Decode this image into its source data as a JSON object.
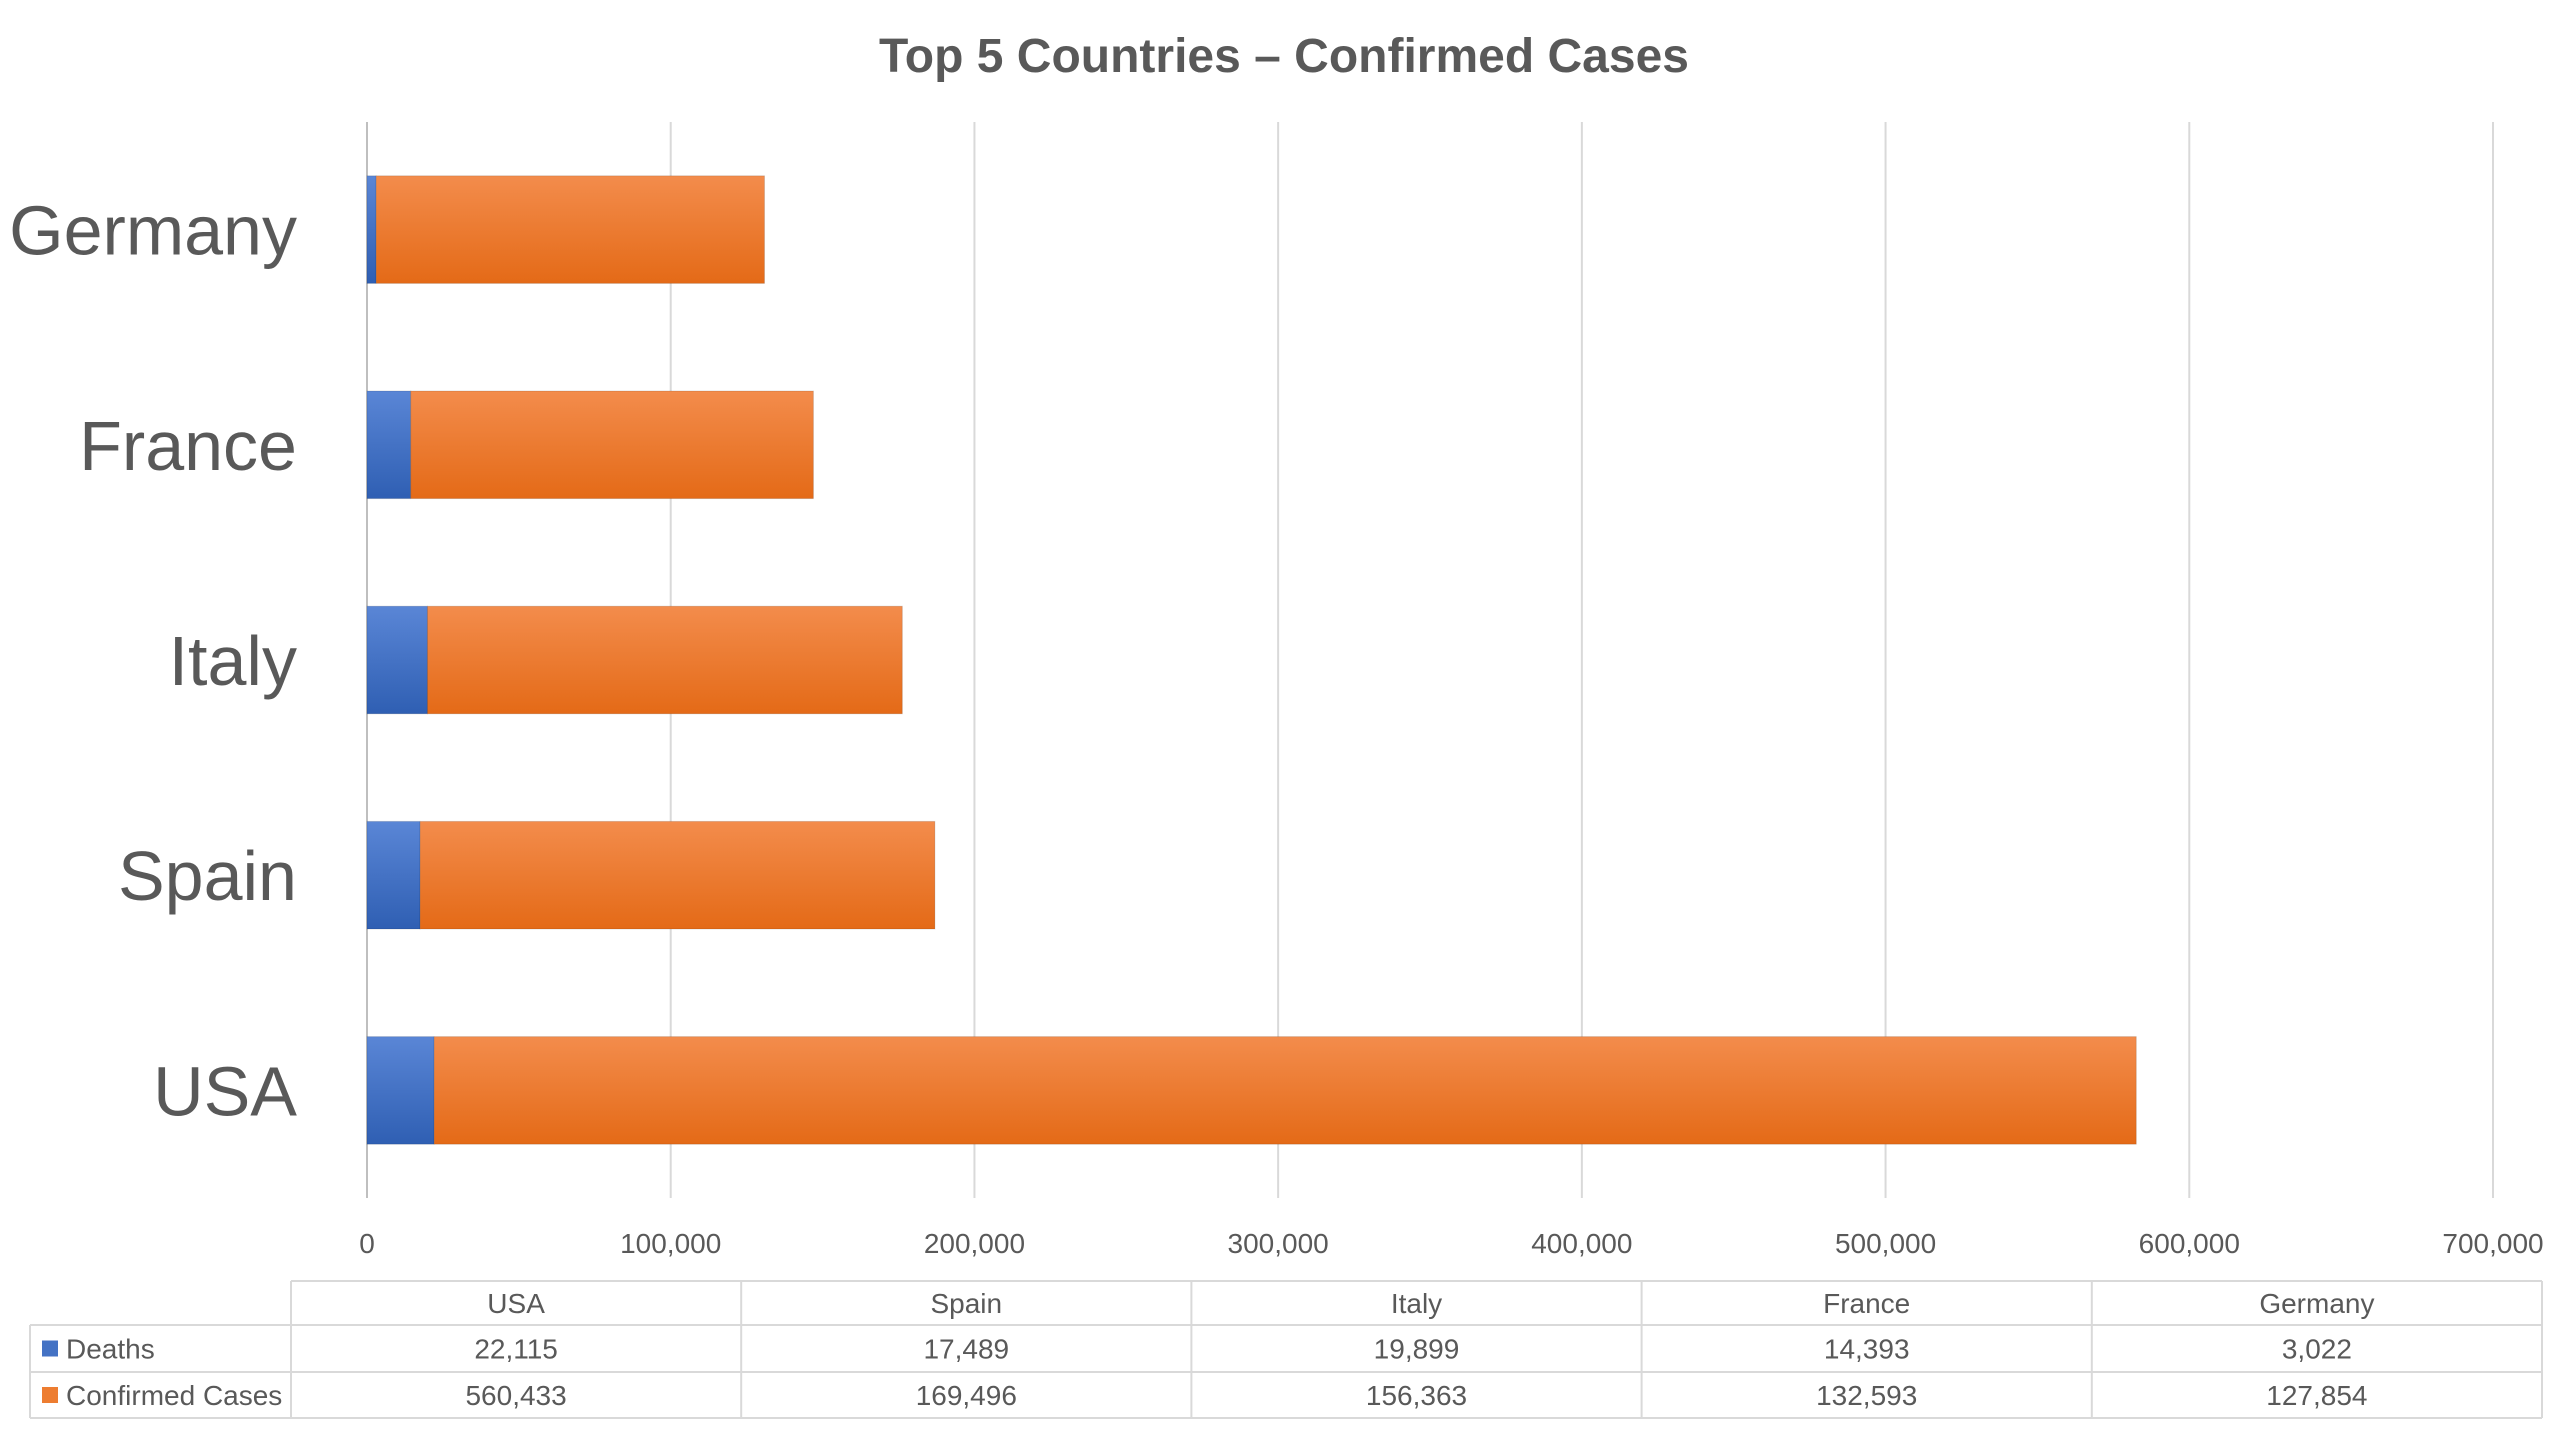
{
  "chart_data": {
    "type": "bar",
    "orientation": "horizontal",
    "stacked": true,
    "title": "Top 5 Countries – Confirmed Cases",
    "categories": [
      "USA",
      "Spain",
      "Italy",
      "France",
      "Germany"
    ],
    "series": [
      {
        "name": "Deaths",
        "color": "#4472C4",
        "values": [
          22115,
          17489,
          19899,
          14393,
          3022
        ],
        "labels": [
          "22,115",
          "17,489",
          "19,899",
          "14,393",
          "3,022"
        ]
      },
      {
        "name": "Confirmed Cases",
        "color": "#ED7D31",
        "values": [
          560433,
          169496,
          156363,
          132593,
          127854
        ],
        "labels": [
          "560,433",
          "169,496",
          "156,363",
          "132,593",
          "127,854"
        ]
      }
    ],
    "xlim": [
      0,
      700000
    ],
    "x_ticks": [
      0,
      100000,
      200000,
      300000,
      400000,
      500000,
      600000,
      700000
    ],
    "x_tick_labels": [
      "0",
      "100,000",
      "200,000",
      "300,000",
      "400,000",
      "500,000",
      "600,000",
      "700,000"
    ],
    "grid": "vertical",
    "legend": "data-table"
  }
}
